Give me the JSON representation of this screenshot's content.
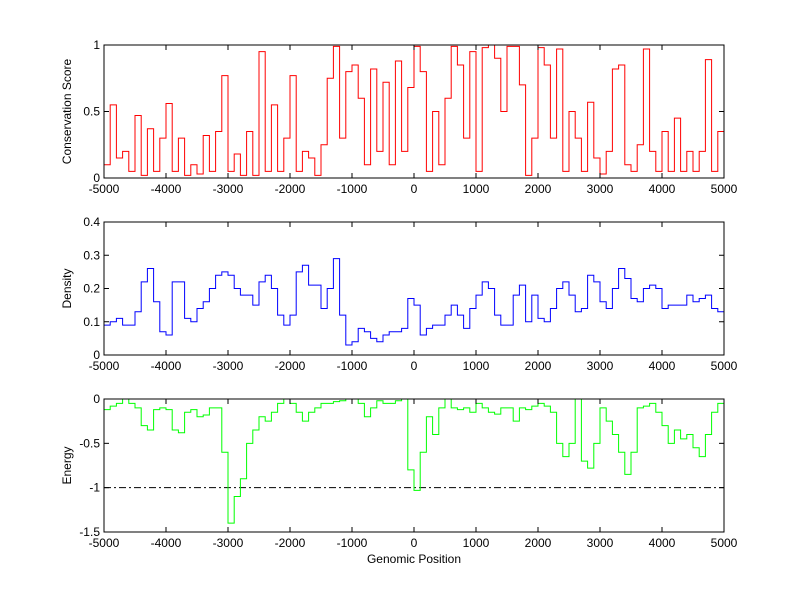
{
  "chart_data": [
    {
      "type": "line",
      "title": "",
      "xlabel": "",
      "ylabel": "Conservation Score",
      "xlim": [
        -5000,
        5000
      ],
      "ylim": [
        0,
        1
      ],
      "xticks": [
        "-5000",
        "-4000",
        "-3000",
        "-2000",
        "-1000",
        "0",
        "1000",
        "2000",
        "3000",
        "4000",
        "5000"
      ],
      "yticks": [
        "0",
        "0.5",
        "1"
      ],
      "ytick_values": [
        0,
        0.5,
        1
      ],
      "grid": false,
      "color": "#ff0000",
      "x_start": -5000,
      "x_step": 100,
      "values": [
        0.1,
        0.55,
        0.15,
        0.2,
        0.05,
        0.47,
        0.02,
        0.37,
        0.05,
        0.3,
        0.56,
        0.05,
        0.3,
        0.02,
        0.1,
        0.03,
        0.32,
        0.05,
        0.35,
        0.77,
        0.05,
        0.18,
        0.02,
        0.35,
        0.02,
        0.95,
        0.05,
        0.55,
        0.05,
        0.3,
        0.77,
        0.05,
        0.2,
        0.15,
        0.02,
        0.25,
        0.75,
        0.99,
        0.3,
        0.8,
        0.85,
        0.6,
        0.1,
        0.82,
        0.2,
        0.72,
        0.1,
        0.88,
        0.2,
        0.68,
        0.99,
        0.8,
        0.05,
        0.5,
        0.1,
        0.6,
        0.99,
        0.85,
        0.3,
        0.95,
        0.05,
        0.98,
        1.0,
        0.9,
        0.5,
        0.99,
        0.99,
        0.7,
        0.02,
        0.3,
        0.98,
        0.85,
        0.3,
        0.97,
        0.05,
        0.5,
        0.3,
        0.05,
        0.57,
        0.15,
        0.03,
        0.2,
        0.82,
        0.85,
        0.1,
        0.05,
        0.25,
        0.97,
        0.2,
        0.05,
        0.35,
        0.05,
        0.45,
        0.05,
        0.2,
        0.05,
        0.2,
        0.89,
        0.05,
        0.35,
        0.55
      ]
    },
    {
      "type": "line",
      "title": "",
      "xlabel": "",
      "ylabel": "Density",
      "xlim": [
        -5000,
        5000
      ],
      "ylim": [
        0,
        0.4
      ],
      "xticks": [
        "-5000",
        "-4000",
        "-3000",
        "-2000",
        "-1000",
        "0",
        "1000",
        "2000",
        "3000",
        "4000",
        "5000"
      ],
      "yticks": [
        "0",
        "0.1",
        "0.2",
        "0.3",
        "0.4"
      ],
      "ytick_values": [
        0,
        0.1,
        0.2,
        0.3,
        0.4
      ],
      "grid": false,
      "color": "#0000ff",
      "x_start": -5000,
      "x_step": 100,
      "values": [
        0.09,
        0.1,
        0.11,
        0.09,
        0.09,
        0.13,
        0.22,
        0.26,
        0.16,
        0.07,
        0.06,
        0.22,
        0.22,
        0.11,
        0.1,
        0.14,
        0.16,
        0.2,
        0.24,
        0.25,
        0.24,
        0.2,
        0.18,
        0.18,
        0.15,
        0.22,
        0.24,
        0.2,
        0.12,
        0.09,
        0.12,
        0.25,
        0.27,
        0.21,
        0.21,
        0.14,
        0.2,
        0.29,
        0.12,
        0.03,
        0.04,
        0.08,
        0.07,
        0.05,
        0.04,
        0.06,
        0.07,
        0.07,
        0.08,
        0.17,
        0.15,
        0.06,
        0.08,
        0.09,
        0.09,
        0.12,
        0.15,
        0.12,
        0.08,
        0.14,
        0.18,
        0.22,
        0.2,
        0.12,
        0.09,
        0.09,
        0.18,
        0.21,
        0.1,
        0.18,
        0.11,
        0.1,
        0.14,
        0.2,
        0.22,
        0.18,
        0.13,
        0.14,
        0.24,
        0.22,
        0.16,
        0.14,
        0.2,
        0.26,
        0.23,
        0.17,
        0.16,
        0.2,
        0.21,
        0.2,
        0.14,
        0.15,
        0.15,
        0.15,
        0.18,
        0.16,
        0.17,
        0.18,
        0.14,
        0.13,
        0.12
      ]
    },
    {
      "type": "line",
      "title": "",
      "xlabel": "Genomic Position",
      "ylabel": "Energy",
      "xlim": [
        -5000,
        5000
      ],
      "ylim": [
        -1.5,
        0
      ],
      "xticks": [
        "-5000",
        "-4000",
        "-3000",
        "-2000",
        "-1000",
        "0",
        "1000",
        "2000",
        "3000",
        "4000",
        "5000"
      ],
      "yticks": [
        "-1.5",
        "-1",
        "-0.5",
        "0"
      ],
      "ytick_values": [
        -1.5,
        -1,
        -0.5,
        0
      ],
      "grid": false,
      "color": "#00ff00",
      "threshold": {
        "value": -1,
        "style": "dash-dot",
        "color": "#000000"
      },
      "x_start": -5000,
      "x_step": 100,
      "values": [
        -0.12,
        -0.08,
        -0.05,
        0,
        -0.05,
        -0.1,
        -0.3,
        -0.35,
        -0.12,
        -0.1,
        -0.12,
        -0.35,
        -0.38,
        -0.15,
        -0.12,
        -0.2,
        -0.18,
        -0.1,
        -0.1,
        -0.6,
        -1.4,
        -1.1,
        -0.9,
        -0.5,
        -0.35,
        -0.2,
        -0.25,
        -0.15,
        -0.05,
        0,
        -0.05,
        -0.15,
        -0.25,
        -0.15,
        -0.1,
        -0.05,
        -0.05,
        -0.03,
        -0.02,
        0,
        0,
        -0.05,
        -0.2,
        -0.1,
        -0.02,
        -0.05,
        -0.05,
        -0.02,
        0,
        -0.8,
        -1.03,
        -0.6,
        -0.2,
        -0.4,
        -0.1,
        0,
        -0.1,
        -0.12,
        -0.1,
        -0.15,
        -0.05,
        -0.1,
        -0.15,
        -0.17,
        -0.1,
        -0.1,
        -0.25,
        -0.1,
        -0.12,
        -0.08,
        -0.05,
        -0.08,
        -0.15,
        -0.5,
        -0.65,
        -0.5,
        0,
        -0.7,
        -0.78,
        -0.5,
        -0.1,
        -0.25,
        -0.4,
        -0.6,
        -0.85,
        -0.6,
        -0.1,
        -0.08,
        -0.05,
        -0.15,
        -0.3,
        -0.5,
        -0.35,
        -0.45,
        -0.4,
        -0.55,
        -0.65,
        -0.4,
        -0.15,
        -0.05,
        -0.25
      ]
    }
  ]
}
